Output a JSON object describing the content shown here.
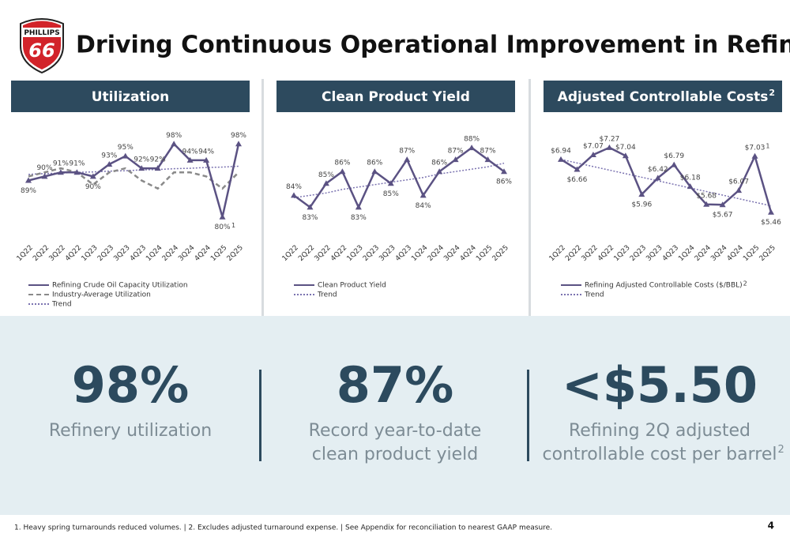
{
  "logo": {
    "top": "PHILLIPS",
    "bottom": "66"
  },
  "header": {
    "title": "Driving Continuous Operational Improvement in Refining"
  },
  "chart_data": [
    {
      "type": "line",
      "title": "Utilization",
      "categories": [
        "1Q22",
        "2Q22",
        "3Q22",
        "4Q22",
        "1Q23",
        "2Q23",
        "3Q23",
        "4Q23",
        "1Q24",
        "2Q24",
        "3Q24",
        "4Q24",
        "1Q25",
        "2Q25"
      ],
      "ylim": [
        78,
        100
      ],
      "series": [
        {
          "name": "Refining Crude Oil Capacity Utilization",
          "color": "#5b5283",
          "style": "solid",
          "marker": "triangle",
          "values": [
            89,
            90,
            91,
            91,
            90,
            93,
            95,
            92,
            92,
            98,
            94,
            94,
            80,
            98
          ],
          "value_labels": [
            "89%",
            "90%",
            "91%",
            "91%",
            "90%",
            "93%",
            "95%",
            "92%",
            "92%",
            "98%",
            "94%",
            "94%",
            "80%",
            "98%"
          ]
        },
        {
          "name": "Industry-Average Utilization",
          "color": "#8a8a8a",
          "style": "dashed",
          "values": [
            90,
            91,
            92,
            91,
            88,
            91,
            92,
            89,
            87,
            91,
            91,
            90,
            87,
            91
          ]
        },
        {
          "name": "Trend",
          "color": "#7b73b0",
          "style": "dotted",
          "values": [
            90.5,
            90.7,
            90.8,
            91.0,
            91.1,
            91.3,
            91.4,
            91.6,
            91.7,
            91.9,
            92.0,
            92.2,
            92.3,
            92.5
          ]
        }
      ],
      "footnote_marks": [
        {
          "index": 12,
          "text": "1"
        }
      ]
    },
    {
      "type": "line",
      "title": "Clean Product Yield",
      "categories": [
        "1Q22",
        "2Q22",
        "3Q22",
        "4Q22",
        "1Q23",
        "2Q23",
        "3Q23",
        "4Q23",
        "1Q24",
        "2Q24",
        "3Q24",
        "4Q24",
        "1Q25",
        "2Q25"
      ],
      "ylim": [
        81.5,
        89
      ],
      "series": [
        {
          "name": "Clean Product Yield",
          "color": "#5b5283",
          "style": "solid",
          "marker": "triangle",
          "values": [
            84,
            83,
            85,
            86,
            83,
            86,
            85,
            87,
            84,
            86,
            87,
            88,
            87,
            86
          ],
          "value_labels": [
            "84%",
            "83%",
            "85%",
            "86%",
            "83%",
            "86%",
            "85%",
            "87%",
            "84%",
            "86%",
            "87%",
            "88%",
            "87%",
            "86%"
          ]
        },
        {
          "name": "Trend",
          "color": "#7b73b0",
          "style": "dotted",
          "values": [
            83.8,
            84.0,
            84.2,
            84.5,
            84.7,
            84.9,
            85.1,
            85.3,
            85.5,
            85.8,
            86.0,
            86.2,
            86.4,
            86.7
          ]
        }
      ]
    },
    {
      "type": "line",
      "title": "Adjusted Controllable Costs",
      "title_superscript": "2",
      "categories": [
        "1Q22",
        "2Q22",
        "3Q22",
        "4Q22",
        "1Q23",
        "2Q23",
        "3Q23",
        "4Q23",
        "1Q24",
        "2Q24",
        "3Q24",
        "4Q24",
        "1Q25",
        "2Q25"
      ],
      "ylim": [
        5.1,
        7.6
      ],
      "series": [
        {
          "name": "Refining Adjusted Controllable Costs ($/BBL)",
          "name_superscript": "2",
          "color": "#5b5283",
          "style": "solid",
          "marker": "triangle",
          "values": [
            6.94,
            6.66,
            7.07,
            7.27,
            7.04,
            5.96,
            6.42,
            6.79,
            6.18,
            5.68,
            5.67,
            6.07,
            7.03,
            5.46
          ],
          "value_labels": [
            "$6.94",
            "$6.66",
            "$7.07",
            "$7.27",
            "$7.04",
            "$5.96",
            "$6.42",
            "$6.79",
            "$6.18",
            "$5.68",
            "$5.67",
            "$6.07",
            "$7.03",
            "$5.46"
          ]
        },
        {
          "name": "Trend",
          "color": "#7b73b0",
          "style": "dotted",
          "values": [
            6.94,
            6.84,
            6.74,
            6.64,
            6.54,
            6.44,
            6.34,
            6.24,
            6.14,
            6.04,
            5.94,
            5.84,
            5.74,
            5.64
          ]
        }
      ],
      "footnote_marks": [
        {
          "index": 12,
          "text": "1"
        }
      ]
    }
  ],
  "stats": [
    {
      "value": "98%",
      "caption": [
        "Refinery utilization"
      ]
    },
    {
      "value": "87%",
      "caption": [
        "Record year-to-date",
        "clean product yield"
      ]
    },
    {
      "value": "<$5.50",
      "caption": [
        "Refining 2Q adjusted",
        "controllable cost per barrel"
      ],
      "caption_superscript": "2"
    }
  ],
  "footer": {
    "note": "1. Heavy spring turnarounds reduced volumes. | 2. Excludes adjusted turnaround expense. | See Appendix for reconciliation to nearest GAAP measure.",
    "page": "4"
  }
}
